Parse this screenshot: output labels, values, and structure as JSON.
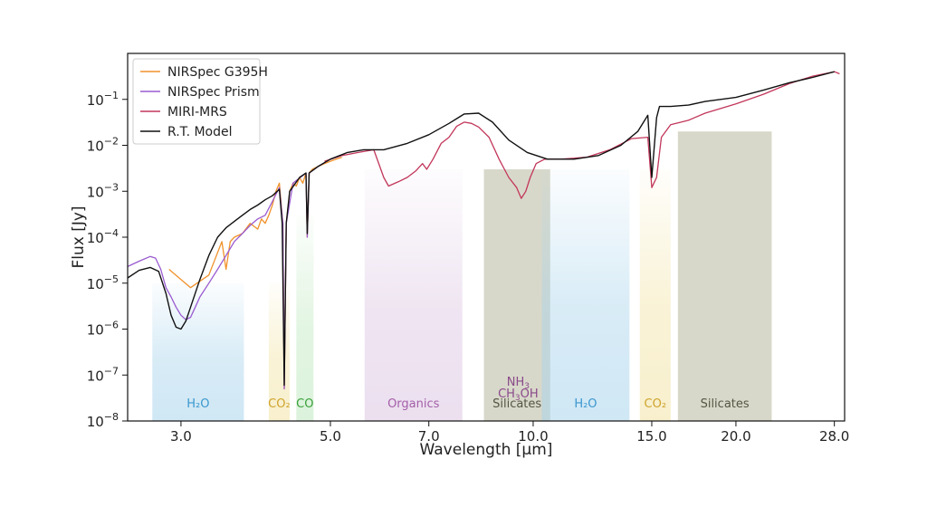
{
  "chart_data": {
    "type": "line",
    "xlabel": "Wavelength [μm]",
    "ylabel": "Flux [Jy]",
    "xscale": "log",
    "yscale": "log",
    "xlim": [
      2.5,
      29.0
    ],
    "ylim": [
      1e-08,
      1.0
    ],
    "grid": false,
    "legend_position": "top-left",
    "x_ticks": [
      {
        "value": 3.0,
        "label": "3.0"
      },
      {
        "value": 5.0,
        "label": "5.0"
      },
      {
        "value": 7.0,
        "label": "7.0"
      },
      {
        "value": 10.0,
        "label": "10.0"
      },
      {
        "value": 15.0,
        "label": "15.0"
      },
      {
        "value": 20.0,
        "label": "20.0"
      },
      {
        "value": 28.0,
        "label": "28.0"
      }
    ],
    "y_ticks": [
      {
        "value": 1e-08,
        "base": "10",
        "exp": "−8"
      },
      {
        "value": 1e-07,
        "base": "10",
        "exp": "−7"
      },
      {
        "value": 1e-06,
        "base": "10",
        "exp": "−6"
      },
      {
        "value": 1e-05,
        "base": "10",
        "exp": "−5"
      },
      {
        "value": 0.0001,
        "base": "10",
        "exp": "−4"
      },
      {
        "value": 0.001,
        "base": "10",
        "exp": "−3"
      },
      {
        "value": 0.01,
        "base": "10",
        "exp": "−2"
      },
      {
        "value": 0.1,
        "base": "10",
        "exp": "−1"
      }
    ],
    "bands": [
      {
        "x0": 2.72,
        "x1": 3.72,
        "ytop": 1e-05,
        "color": "#a9d4ec",
        "label": "H₂O",
        "label_color": "#3a97cf",
        "fade": true
      },
      {
        "x0": 4.05,
        "x1": 4.35,
        "ytop": 1e-05,
        "color": "#f2e3a4",
        "label": "CO₂",
        "label_color": "#cfa32c",
        "fade": true
      },
      {
        "x0": 4.45,
        "x1": 4.72,
        "ytop": 0.0003,
        "color": "#bfe8bf",
        "label": "CO",
        "label_color": "#3aa03a",
        "fade": true
      },
      {
        "x0": 5.62,
        "x1": 7.85,
        "ytop": 0.003,
        "color": "#dcc6e2",
        "label": "Organics",
        "label_color": "#a45ea8",
        "fade": true
      },
      {
        "x0": 8.45,
        "x1": 10.6,
        "ytop": 0.003,
        "color": "#c8c7b4",
        "label": "Silicates",
        "label_color": "#555544",
        "fade": false
      },
      {
        "x0": 10.3,
        "x1": 13.9,
        "ytop": 0.003,
        "color": "#a9d4ec",
        "label": "H₂O",
        "label_color": "#3a97cf",
        "fade": true
      },
      {
        "x0": 14.4,
        "x1": 16.0,
        "ytop": 0.003,
        "color": "#f2e3a4",
        "label": "CO₂",
        "label_color": "#cfa32c",
        "fade": true
      },
      {
        "x0": 16.4,
        "x1": 22.6,
        "ytop": 0.02,
        "color": "#c8c7b4",
        "label": "Silicates",
        "label_color": "#555544",
        "fade": false
      }
    ],
    "annotations": [
      {
        "text": "NH",
        "sub": "3",
        "x": 9.5,
        "color": "#8a4a8a"
      },
      {
        "text": "CH",
        "sub": "3",
        "tail": "OH",
        "x": 9.5,
        "color": "#8a4a8a"
      }
    ],
    "series": [
      {
        "name": "NIRSpec G395H",
        "color": "#f0922b",
        "points": [
          [
            2.88,
            2e-05
          ],
          [
            3.1,
            8e-06
          ],
          [
            3.3,
            1.5e-05
          ],
          [
            3.45,
            8e-05
          ],
          [
            3.5,
            2e-05
          ],
          [
            3.55,
            8e-05
          ],
          [
            3.6,
            0.0001
          ],
          [
            3.7,
            0.00012
          ],
          [
            3.8,
            0.0002
          ],
          [
            3.9,
            0.00015
          ],
          [
            3.95,
            0.00025
          ],
          [
            4.0,
            0.0002
          ],
          [
            4.05,
            0.0003
          ],
          [
            4.1,
            0.0005
          ],
          [
            4.15,
            0.001
          ],
          [
            4.2,
            0.0015
          ],
          [
            4.25,
            0.0002
          ],
          [
            4.27,
            5e-08
          ],
          [
            4.3,
            0.0002
          ],
          [
            4.35,
            0.001
          ],
          [
            4.4,
            0.0015
          ],
          [
            4.45,
            0.0013
          ],
          [
            4.5,
            0.002
          ],
          [
            4.55,
            0.0015
          ],
          [
            4.6,
            0.0025
          ],
          [
            4.62,
            0.0001
          ],
          [
            4.65,
            0.0025
          ],
          [
            4.7,
            0.003
          ],
          [
            4.8,
            0.0035
          ],
          [
            4.9,
            0.004
          ],
          [
            5.0,
            0.0045
          ],
          [
            5.1,
            0.005
          ],
          [
            5.2,
            0.0055
          ]
        ]
      },
      {
        "name": "NIRSpec Prism",
        "color": "#9a5bd0",
        "points": [
          [
            2.5,
            2.3e-05
          ],
          [
            2.6,
            3e-05
          ],
          [
            2.7,
            3.8e-05
          ],
          [
            2.75,
            3.5e-05
          ],
          [
            2.8,
            2e-05
          ],
          [
            2.85,
            8e-06
          ],
          [
            2.9,
            5e-06
          ],
          [
            2.95,
            3e-06
          ],
          [
            3.0,
            2e-06
          ],
          [
            3.05,
            1.6e-06
          ],
          [
            3.1,
            1.8e-06
          ],
          [
            3.15,
            3e-06
          ],
          [
            3.2,
            5e-06
          ],
          [
            3.3,
            1e-05
          ],
          [
            3.4,
            2e-05
          ],
          [
            3.5,
            4e-05
          ],
          [
            3.6,
            8e-05
          ],
          [
            3.7,
            0.00012
          ],
          [
            3.8,
            0.00018
          ],
          [
            3.9,
            0.00025
          ],
          [
            4.0,
            0.0003
          ],
          [
            4.1,
            0.0006
          ],
          [
            4.2,
            0.0012
          ],
          [
            4.25,
            0.0002
          ],
          [
            4.27,
            5e-08
          ],
          [
            4.3,
            0.0002
          ],
          [
            4.4,
            0.0015
          ],
          [
            4.6,
            0.0025
          ],
          [
            4.62,
            0.0001
          ],
          [
            4.65,
            0.0025
          ],
          [
            4.8,
            0.0035
          ],
          [
            5.0,
            0.005
          ],
          [
            5.2,
            0.006
          ]
        ]
      },
      {
        "name": "MIRI-MRS",
        "color": "#c2365a",
        "points": [
          [
            4.9,
            0.0045
          ],
          [
            5.2,
            0.006
          ],
          [
            5.5,
            0.007
          ],
          [
            5.8,
            0.008
          ],
          [
            6.0,
            0.002
          ],
          [
            6.1,
            0.0013
          ],
          [
            6.3,
            0.0016
          ],
          [
            6.5,
            0.002
          ],
          [
            6.7,
            0.0028
          ],
          [
            6.85,
            0.004
          ],
          [
            6.95,
            0.003
          ],
          [
            7.1,
            0.005
          ],
          [
            7.3,
            0.011
          ],
          [
            7.5,
            0.015
          ],
          [
            7.7,
            0.026
          ],
          [
            7.9,
            0.032
          ],
          [
            8.1,
            0.03
          ],
          [
            8.3,
            0.025
          ],
          [
            8.6,
            0.015
          ],
          [
            8.9,
            0.005
          ],
          [
            9.2,
            0.002
          ],
          [
            9.45,
            0.0012
          ],
          [
            9.6,
            0.0007
          ],
          [
            9.75,
            0.001
          ],
          [
            9.9,
            0.002
          ],
          [
            10.1,
            0.004
          ],
          [
            10.4,
            0.005
          ],
          [
            11.0,
            0.005
          ],
          [
            12.0,
            0.0055
          ],
          [
            13.0,
            0.008
          ],
          [
            14.0,
            0.014
          ],
          [
            14.8,
            0.015
          ],
          [
            15.0,
            0.0012
          ],
          [
            15.25,
            0.002
          ],
          [
            15.5,
            0.015
          ],
          [
            16.0,
            0.028
          ],
          [
            17.0,
            0.035
          ],
          [
            18.0,
            0.05
          ],
          [
            20.0,
            0.08
          ],
          [
            22.0,
            0.13
          ],
          [
            24.0,
            0.22
          ],
          [
            26.0,
            0.32
          ],
          [
            28.0,
            0.4
          ],
          [
            28.5,
            0.36
          ]
        ]
      },
      {
        "name": "R.T. Model",
        "color": "#111111",
        "points": [
          [
            2.5,
            1.3e-05
          ],
          [
            2.6,
            1.9e-05
          ],
          [
            2.7,
            2.2e-05
          ],
          [
            2.78,
            1.8e-05
          ],
          [
            2.85,
            6e-06
          ],
          [
            2.9,
            2e-06
          ],
          [
            2.95,
            1.1e-06
          ],
          [
            3.0,
            1e-06
          ],
          [
            3.05,
            1.5e-06
          ],
          [
            3.1,
            3e-06
          ],
          [
            3.2,
            1.2e-05
          ],
          [
            3.3,
            4e-05
          ],
          [
            3.4,
            0.0001
          ],
          [
            3.5,
            0.00016
          ],
          [
            3.6,
            0.00022
          ],
          [
            3.7,
            0.0003
          ],
          [
            3.8,
            0.0004
          ],
          [
            3.9,
            0.0005
          ],
          [
            4.0,
            0.00065
          ],
          [
            4.1,
            0.0008
          ],
          [
            4.2,
            0.0011
          ],
          [
            4.24,
            0.0002
          ],
          [
            4.27,
            6e-08
          ],
          [
            4.3,
            0.0002
          ],
          [
            4.35,
            0.001
          ],
          [
            4.5,
            0.002
          ],
          [
            4.6,
            0.0025
          ],
          [
            4.62,
            0.00012
          ],
          [
            4.65,
            0.0025
          ],
          [
            4.8,
            0.0035
          ],
          [
            5.0,
            0.005
          ],
          [
            5.3,
            0.007
          ],
          [
            5.6,
            0.008
          ],
          [
            6.0,
            0.008
          ],
          [
            6.5,
            0.011
          ],
          [
            7.0,
            0.017
          ],
          [
            7.5,
            0.03
          ],
          [
            7.9,
            0.048
          ],
          [
            8.3,
            0.05
          ],
          [
            8.7,
            0.032
          ],
          [
            9.2,
            0.013
          ],
          [
            9.8,
            0.007
          ],
          [
            10.5,
            0.005
          ],
          [
            11.5,
            0.005
          ],
          [
            12.5,
            0.006
          ],
          [
            13.5,
            0.01
          ],
          [
            14.3,
            0.02
          ],
          [
            14.8,
            0.045
          ],
          [
            15.0,
            0.002
          ],
          [
            15.25,
            0.04
          ],
          [
            15.4,
            0.07
          ],
          [
            16.0,
            0.07
          ],
          [
            17.0,
            0.075
          ],
          [
            18.0,
            0.09
          ],
          [
            20.0,
            0.11
          ],
          [
            22.0,
            0.16
          ],
          [
            24.0,
            0.23
          ],
          [
            26.0,
            0.3
          ],
          [
            28.0,
            0.4
          ]
        ]
      }
    ]
  }
}
